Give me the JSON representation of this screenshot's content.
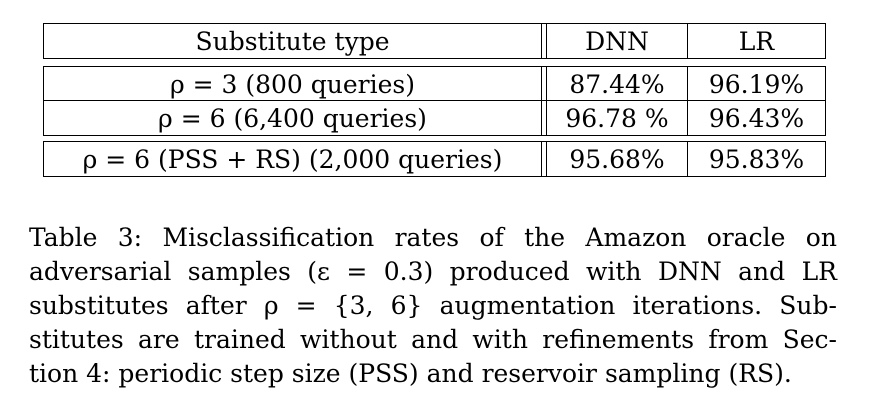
{
  "table": {
    "headers": {
      "type": "Substitute type",
      "dnn": "DNN",
      "lr": "LR"
    },
    "rows": [
      {
        "type": "ρ = 3 (800 queries)",
        "dnn": "87.44%",
        "lr": "96.19%"
      },
      {
        "type": "ρ = 6 (6,400 queries)",
        "dnn": "96.78 %",
        "lr": "96.43%"
      },
      {
        "type": "ρ = 6 (PSS + RS) (2,000 queries)",
        "dnn": "95.68%",
        "lr": "95.83%"
      }
    ]
  },
  "caption": {
    "lines": [
      "Table 3: Misclassification rates of the Amazon oracle on",
      "adversarial samples (ε = 0.3) produced with DNN and LR",
      "substitutes after ρ = {3, 6} augmentation iterations. Sub-",
      "stitutes are trained without and with refinements from Sec-",
      "tion 4: periodic step size (PSS) and reservoir sampling (RS)."
    ]
  }
}
